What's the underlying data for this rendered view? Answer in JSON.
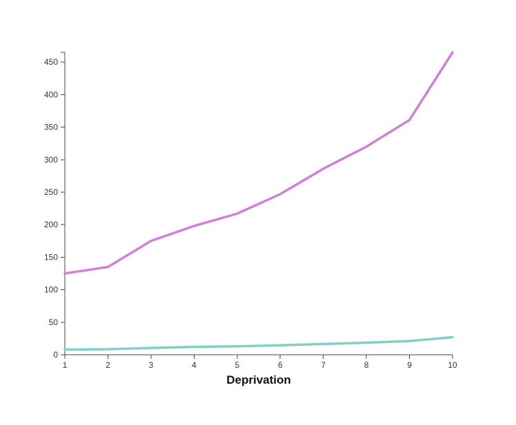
{
  "chart_data": {
    "type": "line",
    "title": "",
    "xlabel": "Deprivation",
    "ylabel": "",
    "x": [
      1,
      2,
      3,
      4,
      5,
      6,
      7,
      8,
      9,
      10
    ],
    "xlim": [
      1,
      10
    ],
    "ylim": [
      0,
      465
    ],
    "x_ticks": [
      "1",
      "2",
      "3",
      "4",
      "5",
      "6",
      "7",
      "8",
      "9",
      "10"
    ],
    "y_ticks": [
      "0",
      "50",
      "100",
      "150",
      "200",
      "250",
      "300",
      "350",
      "400",
      "450"
    ],
    "grid": false,
    "legend": "none",
    "series": [
      {
        "color": "#d080d8",
        "values": [
          125,
          135,
          175,
          198,
          217,
          247,
          286,
          320,
          361,
          465
        ]
      },
      {
        "color": "#80d0c8",
        "values": [
          8,
          8.5,
          10.5,
          12,
          13,
          14.5,
          16.5,
          18.5,
          21,
          27
        ]
      }
    ]
  }
}
